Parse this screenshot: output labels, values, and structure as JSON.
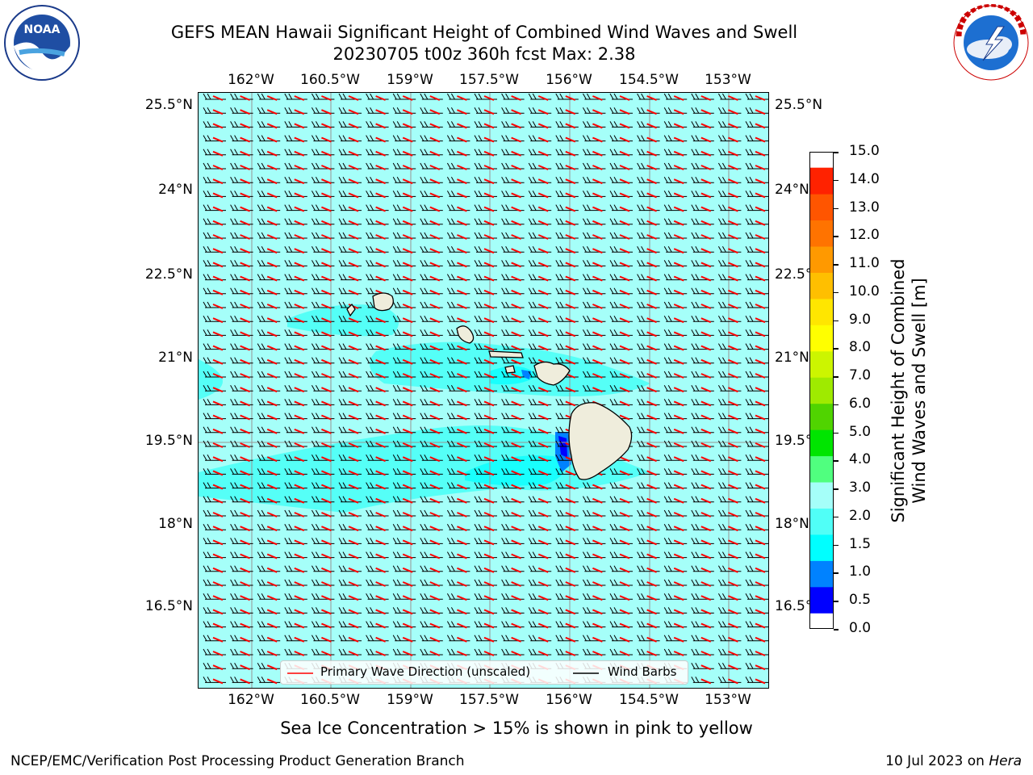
{
  "header": {
    "title_line1": "GEFS MEAN Hawaii Significant Height of Combined Wind Waves and Swell",
    "title_line2": "20230705 t00z 360h fcst   Max: 2.38"
  },
  "logos": {
    "left": {
      "text": "NOAA",
      "ring_text": "NATIONAL OCEANIC AND ATMOSPHERIC ADMINISTRATION · U.S. DEPARTMENT OF COMMERCE"
    },
    "right": {
      "ring_text": "NATIONAL WEATHER SERVICE"
    }
  },
  "map": {
    "lon_ticks": [
      "162°W",
      "160.5°W",
      "159°W",
      "157.5°W",
      "156°W",
      "154.5°W",
      "153°W"
    ],
    "lat_ticks": [
      "25.5°N",
      "24°N",
      "22.5°N",
      "21°N",
      "19.5°N",
      "18°N",
      "16.5°N"
    ],
    "lat_ticks_right": [
      "25.5°N",
      "24°N",
      "22.5°",
      "21°N",
      "19.5°",
      "18°N",
      "16.5°"
    ],
    "ocean_color": "#a5fff9",
    "land_color": "#efeddc",
    "wave_arrow_color": "#ff0000",
    "barb_color": "#000000"
  },
  "legend": {
    "primary_wave": "Primary Wave Direction (unscaled)",
    "wind_barbs": "Wind Barbs"
  },
  "colorbar": {
    "label_line1": "Significant Height of Combined",
    "label_line2": "Wind Waves and Swell [m]",
    "levels": [
      "0.0",
      "0.5",
      "1.0",
      "1.5",
      "2.0",
      "3.0",
      "4.0",
      "5.0",
      "6.0",
      "7.0",
      "8.0",
      "9.0",
      "10.0",
      "11.0",
      "12.0",
      "13.0",
      "14.0",
      "15.0"
    ],
    "colors": [
      "#0000ff",
      "#0082ff",
      "#00ffff",
      "#50fff7",
      "#a5fff9",
      "#50ff7f",
      "#00e500",
      "#50d400",
      "#9fea00",
      "#ccf500",
      "#ffff00",
      "#ffe600",
      "#ffbf00",
      "#ff9900",
      "#ff7300",
      "#ff5500",
      "#ff2200"
    ]
  },
  "footer": {
    "note": "Sea Ice Concentration > 15% is shown in pink to yellow",
    "credit": "NCEP/EMC/Verification Post Processing Product Generation Branch",
    "date": "10 Jul 2023 on ",
    "machine": "Hera"
  }
}
